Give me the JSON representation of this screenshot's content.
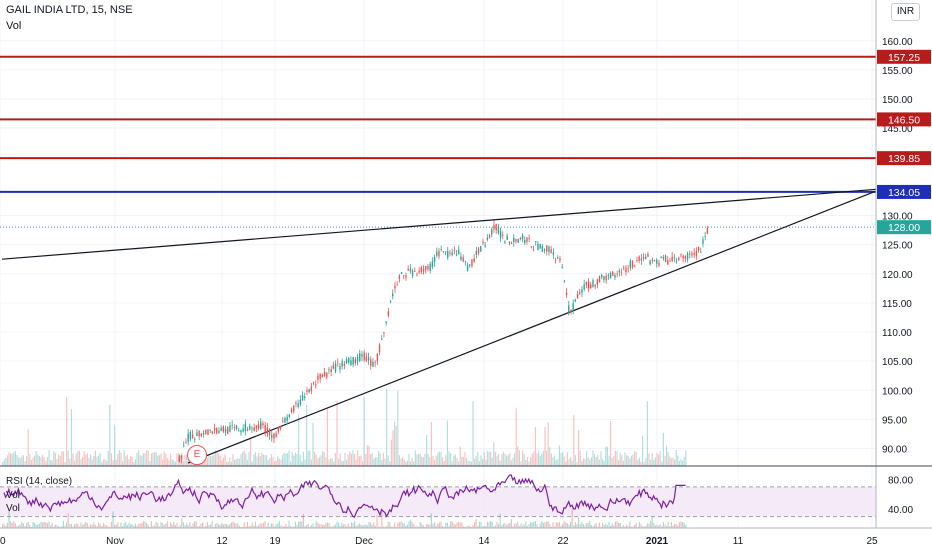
{
  "header": {
    "symbol": "GAIL INDIA LTD, 15, NSE",
    "vol_label": "Vol",
    "currency": "INR"
  },
  "price_scale": {
    "min": 87,
    "max": 167,
    "ticks": [
      "90.00",
      "95.00",
      "100.00",
      "105.00",
      "110.00",
      "115.00",
      "120.00",
      "125.00",
      "130.00",
      "145.00",
      "150.00",
      "155.00",
      "160.00"
    ]
  },
  "levels": [
    {
      "label": "157.25",
      "value": 157.25,
      "color": "#b71c1c"
    },
    {
      "label": "146.50",
      "value": 146.5,
      "color": "#b71c1c"
    },
    {
      "label": "139.85",
      "value": 139.85,
      "color": "#b71c1c"
    },
    {
      "label": "134.05",
      "value": 134.05,
      "color": "#1e2fb5"
    }
  ],
  "last_price": {
    "label": "128.00",
    "value": 128.0,
    "color": "#26a69a"
  },
  "time_axis": [
    "0",
    "Nov",
    "12",
    "19",
    "Dec",
    "14",
    "22",
    "2021",
    "11",
    "25"
  ],
  "event_marker": "E",
  "rsi": {
    "label": "RSI (14, close)",
    "vol_label": "Vol",
    "ticks": [
      "80.00",
      "40.00"
    ],
    "upper": 70,
    "lower": 30
  },
  "chart_data": {
    "type": "candlestick",
    "title": "GAIL INDIA LTD, 15, NSE",
    "interval": "15",
    "exchange": "NSE",
    "currency": "INR",
    "ylim": [
      87,
      167
    ],
    "horizontal_levels": [
      157.25,
      146.5,
      139.85,
      134.05
    ],
    "last_price": 128.0,
    "price_path": [
      {
        "date": "2020-11-10",
        "close": 88
      },
      {
        "date": "2020-11-11",
        "close": 92
      },
      {
        "date": "2020-11-13",
        "close": 93
      },
      {
        "date": "2020-11-17",
        "close": 93.5
      },
      {
        "date": "2020-11-19",
        "close": 94
      },
      {
        "date": "2020-11-20",
        "close": 92
      },
      {
        "date": "2020-11-23",
        "close": 98
      },
      {
        "date": "2020-11-25",
        "close": 102
      },
      {
        "date": "2020-11-27",
        "close": 104
      },
      {
        "date": "2020-11-30",
        "close": 106
      },
      {
        "date": "2020-12-01",
        "close": 104
      },
      {
        "date": "2020-12-02",
        "close": 110
      },
      {
        "date": "2020-12-03",
        "close": 117
      },
      {
        "date": "2020-12-04",
        "close": 120
      },
      {
        "date": "2020-12-07",
        "close": 121
      },
      {
        "date": "2020-12-08",
        "close": 124
      },
      {
        "date": "2020-12-09",
        "close": 123
      },
      {
        "date": "2020-12-10",
        "close": 124
      },
      {
        "date": "2020-12-11",
        "close": 121
      },
      {
        "date": "2020-12-14",
        "close": 128
      },
      {
        "date": "2020-12-15",
        "close": 126
      },
      {
        "date": "2020-12-17",
        "close": 126
      },
      {
        "date": "2020-12-18",
        "close": 125
      },
      {
        "date": "2020-12-20",
        "close": 124
      },
      {
        "date": "2020-12-21",
        "close": 122
      },
      {
        "date": "2020-12-22",
        "close": 113
      },
      {
        "date": "2020-12-23",
        "close": 117
      },
      {
        "date": "2020-12-24",
        "close": 118
      },
      {
        "date": "2020-12-28",
        "close": 121
      },
      {
        "date": "2020-12-29",
        "close": 122
      },
      {
        "date": "2020-12-30",
        "close": 123
      },
      {
        "date": "2020-12-31",
        "close": 122
      },
      {
        "date": "2021-01-04",
        "close": 123
      },
      {
        "date": "2021-01-05",
        "close": 124
      },
      {
        "date": "2021-01-06",
        "close": 128
      }
    ],
    "trendlines": [
      {
        "from": {
          "date": "2020-10-22",
          "price": 122.5
        },
        "to": {
          "date": "2021-01-24",
          "price": 134.5
        }
      },
      {
        "from": {
          "date": "2020-11-11",
          "price": 87.5
        },
        "to": {
          "date": "2021-01-24",
          "price": 134.2
        }
      }
    ],
    "rsi_ticks": [
      80,
      40
    ],
    "rsi_bands": [
      30,
      70
    ]
  }
}
